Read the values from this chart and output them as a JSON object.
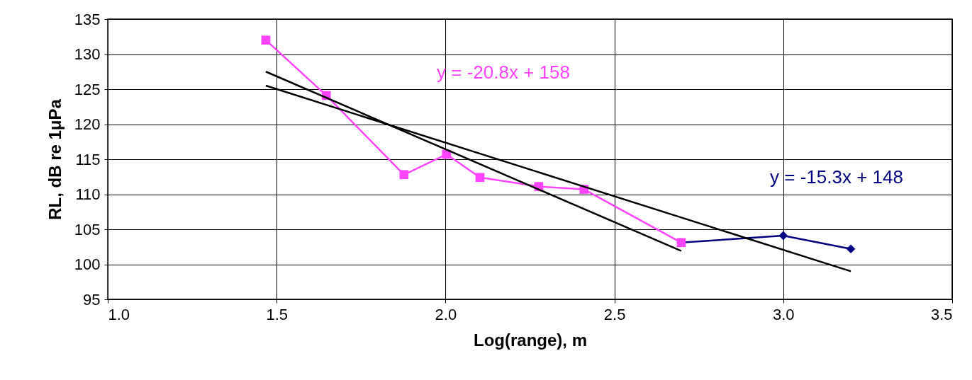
{
  "chart_data": {
    "type": "line",
    "xlabel": "Log(range), m",
    "ylabel": "RL, dB re 1μPa",
    "xlim": [
      1,
      3.5
    ],
    "ylim": [
      95,
      135
    ],
    "xticks": [
      {
        "value": 1,
        "label": "1.0"
      },
      1.5,
      {
        "value": 2,
        "label": "2.0"
      },
      2.5,
      {
        "value": 3,
        "label": "3.0"
      },
      3.5
    ],
    "yticks": [
      95,
      100,
      105,
      110,
      115,
      120,
      125,
      130,
      135
    ],
    "grid": true,
    "series": [
      {
        "color": "#000080",
        "marker": "diamond",
        "x": [
          2.698,
          3.0,
          3.2
        ],
        "values": [
          103.1,
          104.1,
          102.2
        ]
      },
      {
        "color": "#ff44ff",
        "marker": "square",
        "x": [
          1.468,
          1.647,
          1.877,
          2.003,
          2.102,
          2.276,
          2.41,
          2.698
        ],
        "values": [
          132,
          124.1,
          112.8,
          115.7,
          112.4,
          111.1,
          110.7,
          103.1
        ]
      },
      {
        "color": "#000000",
        "marker": "none",
        "x": [
          1.468,
          2.698
        ],
        "values": [
          127.5,
          101.9
        ]
      },
      {
        "color": "#000000",
        "marker": "none",
        "x": [
          1.468,
          3.2
        ],
        "values": [
          125.5,
          99.0
        ]
      }
    ],
    "annotations": [
      "y = -20.8x + 158",
      "y = -15.3x + 148"
    ]
  }
}
